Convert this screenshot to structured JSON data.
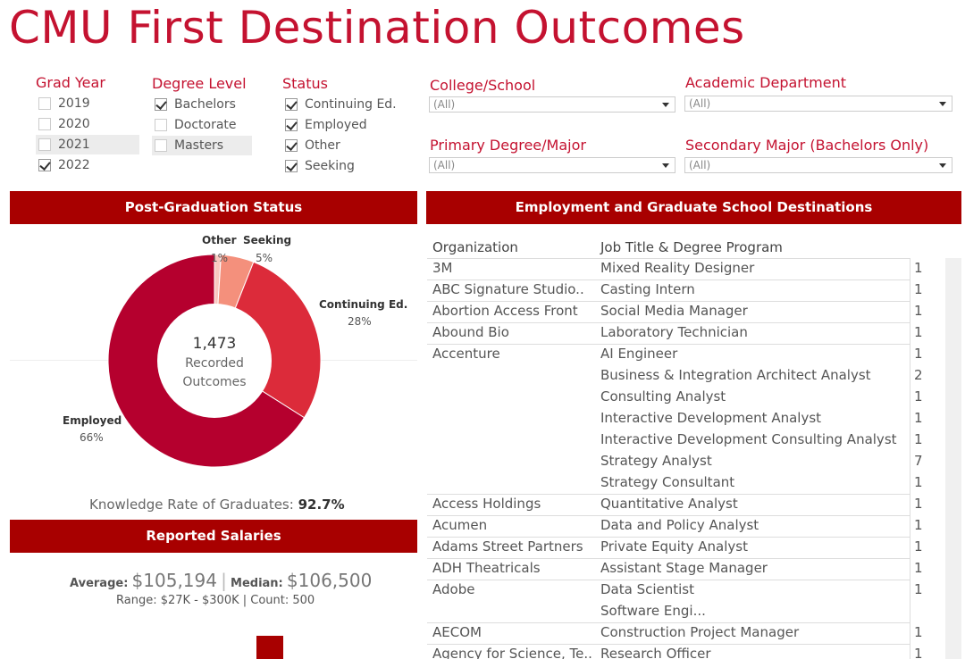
{
  "title": "CMU First Destination Outcomes",
  "filters": {
    "grad_year": {
      "label": "Grad Year",
      "options": [
        {
          "label": "2019",
          "checked": false
        },
        {
          "label": "2020",
          "checked": false
        },
        {
          "label": "2021",
          "checked": false
        },
        {
          "label": "2022",
          "checked": true
        }
      ]
    },
    "degree_level": {
      "label": "Degree Level",
      "options": [
        {
          "label": "Bachelors",
          "checked": true
        },
        {
          "label": "Doctorate",
          "checked": false
        },
        {
          "label": "Masters",
          "checked": false
        }
      ]
    },
    "status": {
      "label": "Status",
      "options": [
        {
          "label": "Continuing Ed.",
          "checked": true
        },
        {
          "label": "Employed",
          "checked": true
        },
        {
          "label": "Other",
          "checked": true
        },
        {
          "label": "Seeking",
          "checked": true
        }
      ]
    },
    "college": {
      "label": "College/School",
      "value": "(All)"
    },
    "department": {
      "label": "Academic Department",
      "value": "(All)"
    },
    "major": {
      "label": "Primary Degree/Major",
      "value": "(All)"
    },
    "secondary": {
      "label": "Secondary Major (Bachelors Only)",
      "value": "(All)"
    }
  },
  "status_panel": {
    "header": "Post-Graduation Status",
    "total": "1,473",
    "center_line1": "Recorded",
    "center_line2": "Outcomes",
    "slices": [
      {
        "label": "Employed",
        "pct": "66%",
        "value": 66,
        "color": "#b5002e"
      },
      {
        "label": "Continuing Ed.",
        "pct": "28%",
        "value": 28,
        "color": "#dc2b3a"
      },
      {
        "label": "Seeking",
        "pct": "5%",
        "value": 5,
        "color": "#f4907c"
      },
      {
        "label": "Other",
        "pct": "1%",
        "value": 1,
        "color": "#f9c8c0"
      }
    ],
    "knowledge_label": "Knowledge Rate of Graduates:",
    "knowledge_value": "92.7%"
  },
  "salary_panel": {
    "header": "Reported Salaries",
    "average_label": "Average:",
    "average_value": "$105,194",
    "separator": "|",
    "median_label": "Median:",
    "median_value": "$106,500",
    "range_line": "Range: $27K - $300K | Count: 500"
  },
  "destinations": {
    "header": "Employment and Graduate School Destinations",
    "col_org": "Organization",
    "col_job": "Job Title & Degree Program",
    "rows": [
      {
        "org": "3M",
        "job": "Mixed Reality Designer",
        "count": "1"
      },
      {
        "org": "ABC Signature Studio..",
        "job": "Casting Intern",
        "count": "1"
      },
      {
        "org": "Abortion Access Front",
        "job": "Social Media Manager",
        "count": "1"
      },
      {
        "org": "Abound Bio",
        "job": "Laboratory Technician",
        "count": "1"
      },
      {
        "org": "Accenture",
        "job": "AI Engineer",
        "count": "1"
      },
      {
        "org": "",
        "job": "Business & Integration Architect Analyst",
        "count": "2"
      },
      {
        "org": "",
        "job": "Consulting Analyst",
        "count": "1"
      },
      {
        "org": "",
        "job": "Interactive Development Analyst",
        "count": "1"
      },
      {
        "org": "",
        "job": "Interactive Development Consulting Analyst",
        "count": "1"
      },
      {
        "org": "",
        "job": "Strategy Analyst",
        "count": "7"
      },
      {
        "org": "",
        "job": "Strategy Consultant",
        "count": "1"
      },
      {
        "org": "Access Holdings",
        "job": "Quantitative Analyst",
        "count": "1"
      },
      {
        "org": "Acumen",
        "job": "Data and Policy Analyst",
        "count": "1"
      },
      {
        "org": "Adams Street Partners",
        "job": "Private Equity Analyst",
        "count": "1"
      },
      {
        "org": "ADH Theatricals",
        "job": "Assistant Stage Manager",
        "count": "1"
      },
      {
        "org": "Adobe",
        "job": "Data Scientist",
        "count": "1"
      },
      {
        "org": "",
        "job": "Software Engi...",
        "count": ""
      },
      {
        "org": "AECOM",
        "job": "Construction Project Manager",
        "count": "1"
      },
      {
        "org": "Agency for Science, Te..",
        "job": "Research Officer",
        "count": "1"
      }
    ]
  }
}
